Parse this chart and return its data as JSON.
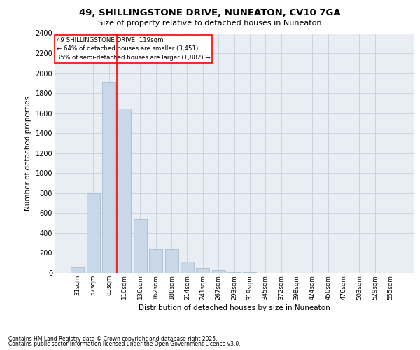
{
  "title_line1": "49, SHILLINGSTONE DRIVE, NUNEATON, CV10 7GA",
  "title_line2": "Size of property relative to detached houses in Nuneaton",
  "xlabel": "Distribution of detached houses by size in Nuneaton",
  "ylabel": "Number of detached properties",
  "categories": [
    "31sqm",
    "57sqm",
    "83sqm",
    "110sqm",
    "136sqm",
    "162sqm",
    "188sqm",
    "214sqm",
    "241sqm",
    "267sqm",
    "293sqm",
    "319sqm",
    "345sqm",
    "372sqm",
    "398sqm",
    "424sqm",
    "450sqm",
    "476sqm",
    "503sqm",
    "529sqm",
    "555sqm"
  ],
  "values": [
    55,
    800,
    1910,
    1650,
    540,
    235,
    235,
    110,
    50,
    30,
    10,
    5,
    0,
    0,
    0,
    0,
    0,
    0,
    0,
    0,
    0
  ],
  "bar_color": "#c8d8e8",
  "bar_edge_color": "#a0b8cc",
  "vline_color": "red",
  "vline_pos": 2.5,
  "ylim": [
    0,
    2400
  ],
  "yticks": [
    0,
    200,
    400,
    600,
    800,
    1000,
    1200,
    1400,
    1600,
    1800,
    2000,
    2200,
    2400
  ],
  "annotation_title": "49 SHILLINGSTONE DRIVE: 119sqm",
  "annotation_line2": "← 64% of detached houses are smaller (3,451)",
  "annotation_line3": "35% of semi-detached houses are larger (1,882) →",
  "annotation_box_color": "red",
  "grid_color": "#c8d0d8",
  "bg_color": "#e8eef4",
  "footnote1": "Contains HM Land Registry data © Crown copyright and database right 2025.",
  "footnote2": "Contains public sector information licensed under the Open Government Licence v3.0."
}
